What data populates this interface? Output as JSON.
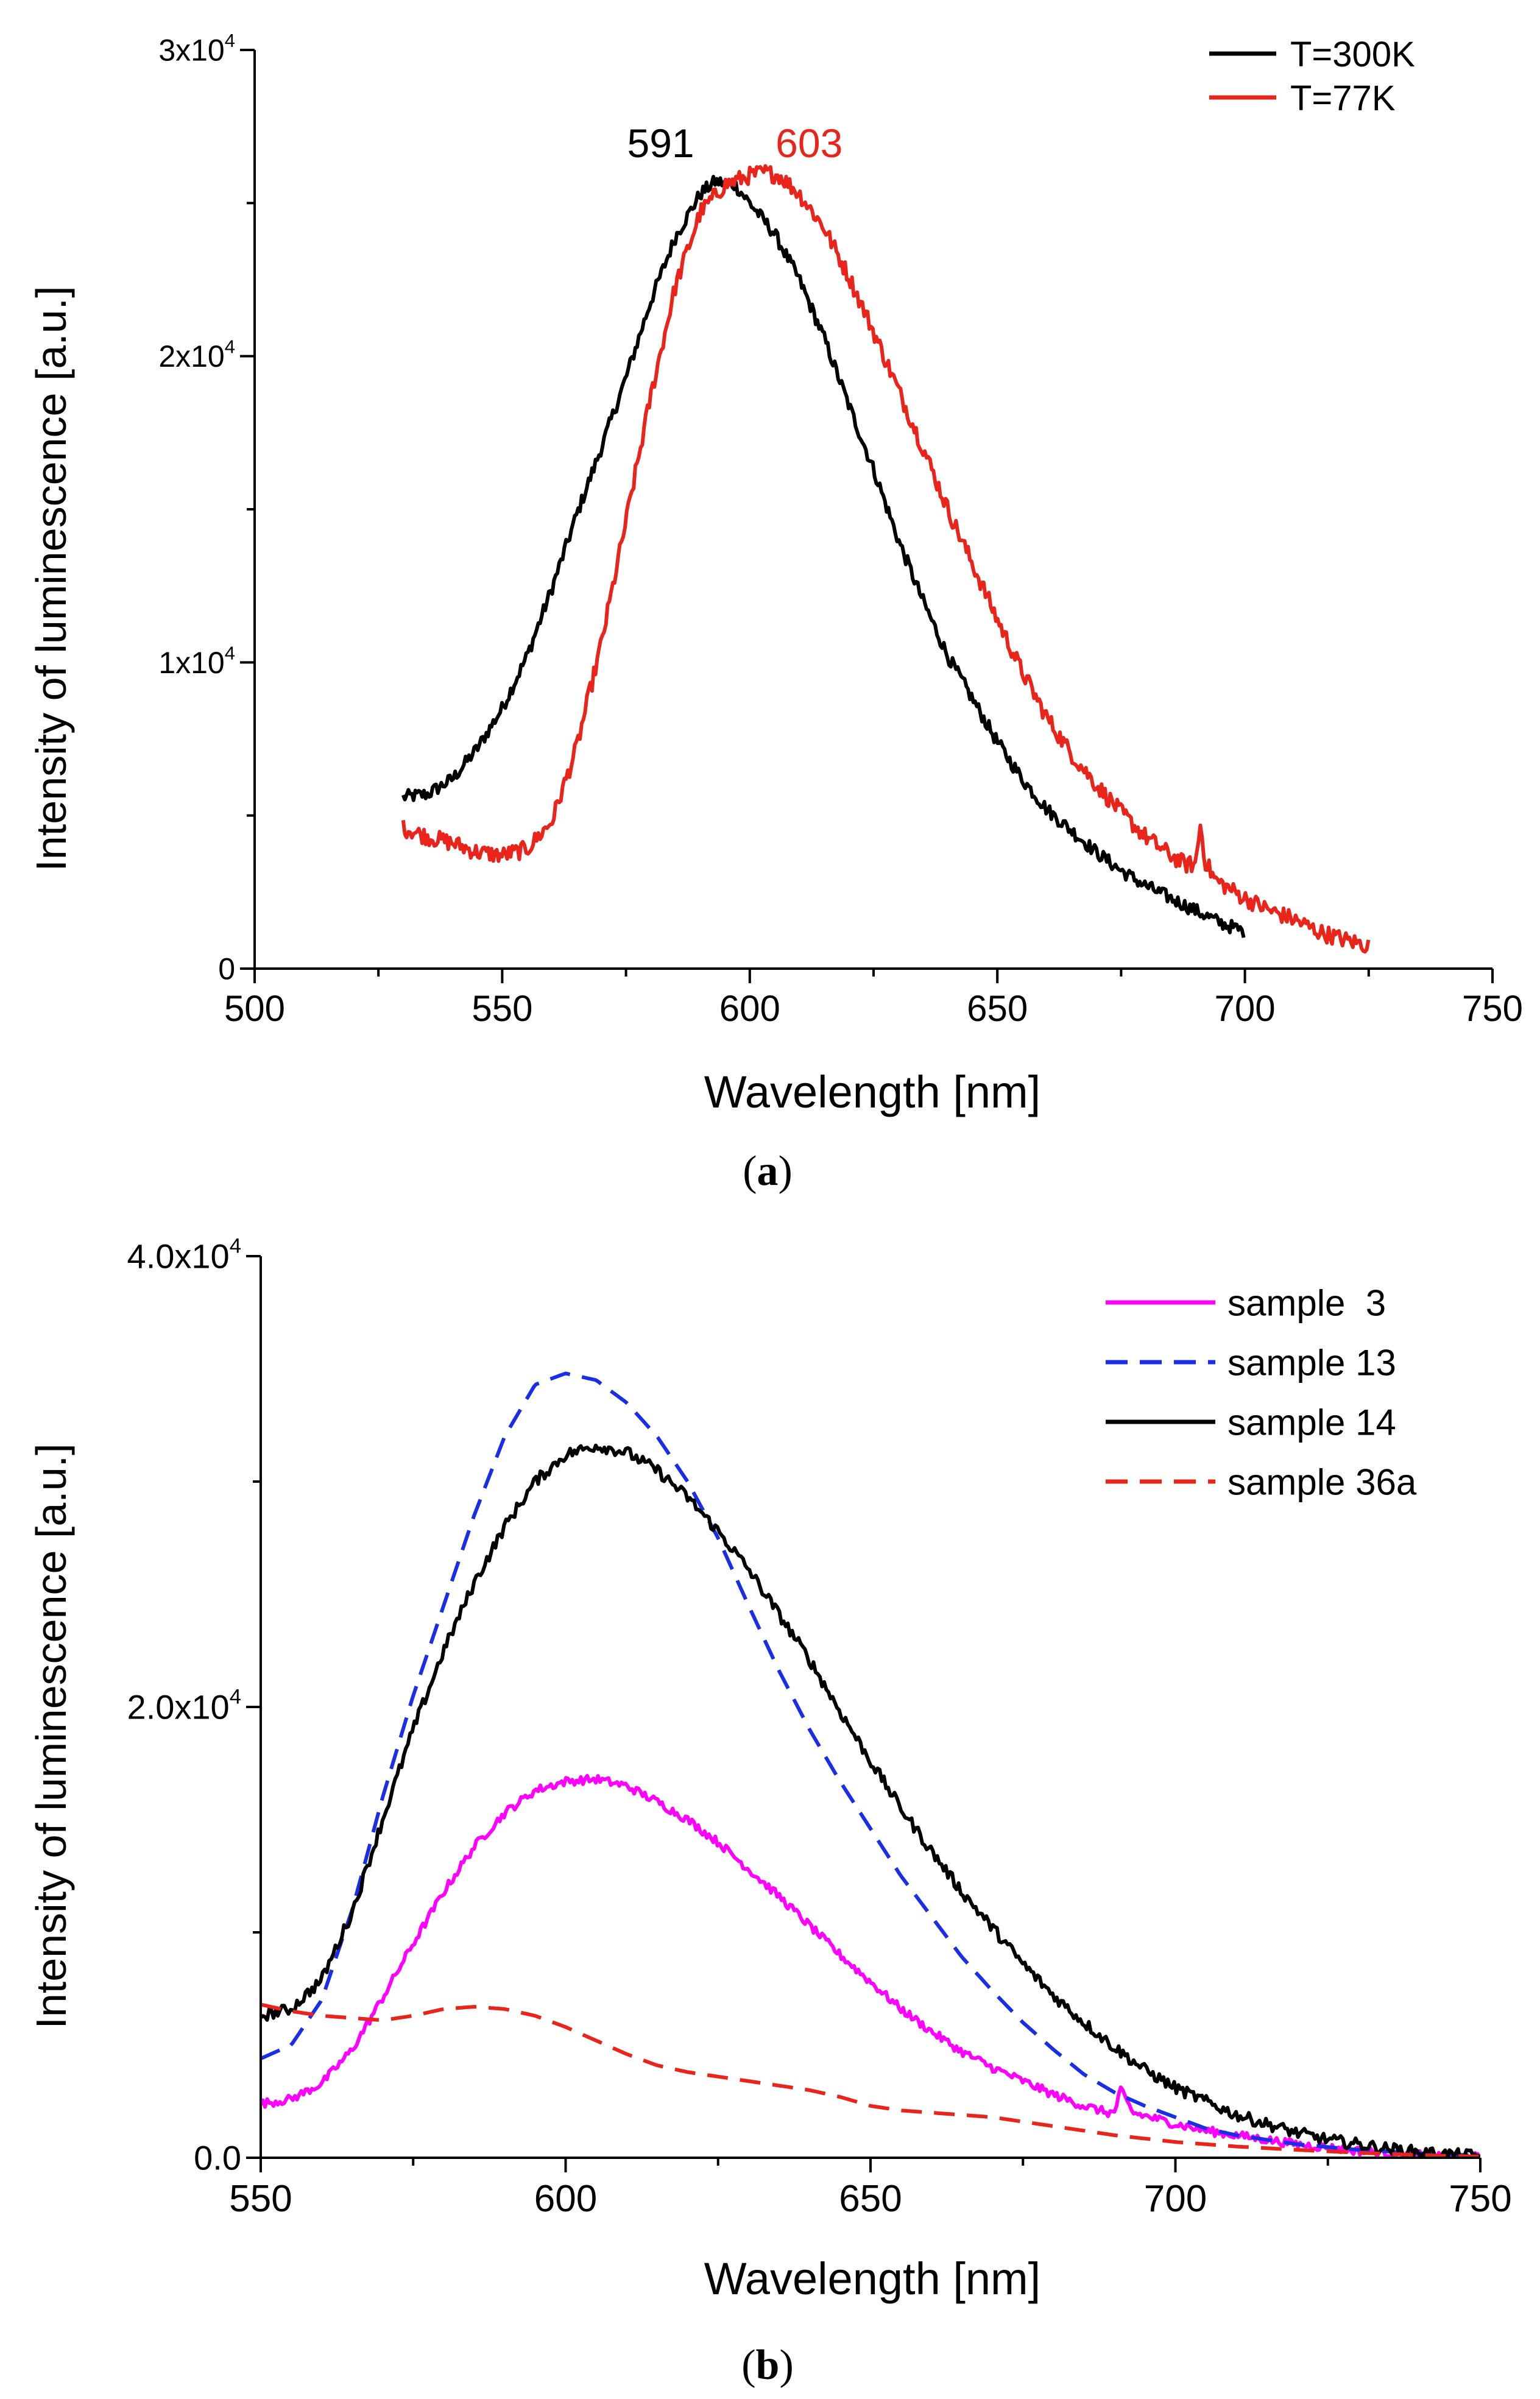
{
  "chart_data": [
    {
      "type": "line",
      "panel_label_open": "(",
      "panel_label_letter": "a",
      "panel_label_close": ")",
      "title": "",
      "xlabel": "Wavelength [nm]",
      "ylabel": "Intensity of luminescence [a.u.]",
      "xlim": [
        500,
        750
      ],
      "ylim": [
        0,
        30000
      ],
      "xticks": [
        500,
        550,
        600,
        650,
        700,
        750
      ],
      "yticks": [
        {
          "value": 0,
          "mantissa": "0",
          "exp": ""
        },
        {
          "value": 10000,
          "mantissa": "1x10",
          "exp": "4"
        },
        {
          "value": 20000,
          "mantissa": "2x10",
          "exp": "4"
        },
        {
          "value": 30000,
          "mantissa": "3x10",
          "exp": "4"
        }
      ],
      "legend_position": "top-right",
      "annotations": [
        {
          "text": "591",
          "x": 591,
          "y": 26500,
          "color": "#000000"
        },
        {
          "text": "603",
          "x": 603,
          "y": 26500,
          "color": "#e8241b"
        }
      ],
      "series": [
        {
          "name": "T=300K",
          "color": "#000000",
          "dash": "solid",
          "x": [
            530,
            535,
            540,
            545,
            550,
            555,
            560,
            565,
            570,
            575,
            580,
            585,
            590,
            593,
            597,
            600,
            605,
            610,
            615,
            620,
            625,
            630,
            635,
            640,
            645,
            650,
            655,
            660,
            665,
            670,
            675,
            680,
            685,
            690,
            695,
            700
          ],
          "y": [
            5600,
            5700,
            6200,
            7200,
            8500,
            10200,
            12400,
            14800,
            17000,
            19300,
            21800,
            23900,
            25300,
            25700,
            25600,
            25000,
            24000,
            22500,
            20600,
            18400,
            16300,
            14000,
            12000,
            10200,
            8800,
            7400,
            6200,
            5200,
            4500,
            3800,
            3200,
            2700,
            2300,
            1900,
            1500,
            1200
          ],
          "noise": 220
        },
        {
          "name": "T=77K",
          "color": "#e8241b",
          "dash": "solid",
          "x": [
            530,
            535,
            540,
            545,
            550,
            555,
            560,
            565,
            570,
            575,
            580,
            585,
            590,
            595,
            600,
            603,
            606,
            610,
            615,
            620,
            625,
            630,
            635,
            640,
            645,
            650,
            655,
            660,
            665,
            670,
            675,
            680,
            685,
            688,
            690,
            691,
            692,
            694,
            700,
            705,
            710,
            715,
            720,
            725
          ],
          "y": [
            4600,
            4300,
            4100,
            3800,
            3700,
            3900,
            4800,
            7200,
            10600,
            14600,
            18700,
            22300,
            24700,
            25600,
            25900,
            26000,
            25900,
            25300,
            24200,
            22600,
            20800,
            18900,
            17000,
            15000,
            13200,
            11400,
            9700,
            8200,
            7000,
            6000,
            5100,
            4300,
            3700,
            3400,
            3400,
            4700,
            3500,
            2900,
            2300,
            1900,
            1600,
            1200,
            950,
            750
          ],
          "noise": 280
        }
      ]
    },
    {
      "type": "line",
      "panel_label_open": "(",
      "panel_label_letter": "b",
      "panel_label_close": ")",
      "title": "",
      "xlabel": "Wavelength [nm]",
      "ylabel": "Intensity of luminescence [a.u.]",
      "xlim": [
        550,
        750
      ],
      "ylim": [
        0,
        40000
      ],
      "xticks": [
        550,
        600,
        650,
        700,
        750
      ],
      "yticks": [
        {
          "value": 0,
          "mantissa": "0.0",
          "exp": ""
        },
        {
          "value": 20000,
          "mantissa": "2.0x10",
          "exp": "4"
        },
        {
          "value": 40000,
          "mantissa": "4.0x10",
          "exp": "4"
        }
      ],
      "legend_position": "top-right",
      "series": [
        {
          "name": "sample  3",
          "color": "#ff00ff",
          "dash": "solid",
          "x": [
            550,
            555,
            560,
            565,
            570,
            575,
            580,
            585,
            590,
            595,
            600,
            605,
            610,
            615,
            620,
            625,
            630,
            635,
            640,
            645,
            650,
            655,
            660,
            665,
            670,
            675,
            680,
            685,
            689,
            690,
            691,
            693,
            700,
            705,
            710,
            715,
            720,
            725,
            730,
            735,
            740,
            745,
            750
          ],
          "y": [
            2400,
            2600,
            3300,
            4800,
            7100,
            9500,
            11800,
            13800,
            15300,
            16300,
            16700,
            16800,
            16500,
            15800,
            15000,
            14000,
            12800,
            11600,
            10300,
            9000,
            7800,
            6600,
            5600,
            4700,
            4000,
            3400,
            2800,
            2300,
            2000,
            2000,
            3000,
            2000,
            1500,
            1200,
            1000,
            800,
            600,
            450,
            300,
            200,
            120,
            60,
            30
          ],
          "noise": 190
        },
        {
          "name": "sample 13",
          "color": "#1a2ee6",
          "dash": "dashed",
          "x": [
            550,
            555,
            560,
            565,
            570,
            575,
            580,
            585,
            590,
            595,
            600,
            605,
            610,
            615,
            620,
            625,
            630,
            635,
            640,
            645,
            650,
            655,
            660,
            665,
            670,
            675,
            680,
            685,
            690,
            695,
            700,
            705,
            710,
            720,
            730,
            740,
            750
          ],
          "y": [
            4400,
            5000,
            7000,
            11000,
            16000,
            20500,
            24500,
            28500,
            32000,
            34300,
            34800,
            34500,
            33500,
            32000,
            30000,
            27500,
            24500,
            21600,
            19000,
            16700,
            14600,
            12500,
            10700,
            8900,
            7400,
            6000,
            4800,
            3700,
            2900,
            2300,
            1800,
            1300,
            1000,
            600,
            350,
            200,
            100
          ],
          "noise": 0
        },
        {
          "name": "sample 14",
          "color": "#000000",
          "dash": "solid",
          "x": [
            550,
            555,
            560,
            565,
            570,
            575,
            580,
            585,
            590,
            595,
            600,
            605,
            610,
            615,
            620,
            625,
            630,
            635,
            640,
            645,
            650,
            655,
            660,
            665,
            670,
            675,
            680,
            685,
            690,
            695,
            700,
            705,
            710,
            715,
            720,
            725,
            730,
            735,
            740,
            745,
            750
          ],
          "y": [
            6300,
            6600,
            7900,
            10900,
            15000,
            19000,
            22500,
            25500,
            28000,
            30000,
            31200,
            31600,
            31300,
            30500,
            29300,
            27800,
            26100,
            24100,
            22100,
            19800,
            17600,
            15500,
            13600,
            11800,
            10200,
            8600,
            7200,
            6000,
            4900,
            3900,
            3100,
            2500,
            1900,
            1500,
            1100,
            800,
            600,
            400,
            250,
            150,
            80
          ],
          "noise": 260
        },
        {
          "name": "sample 36a",
          "color": "#e8241b",
          "dash": "dashed",
          "x": [
            550,
            555,
            560,
            565,
            570,
            575,
            580,
            585,
            590,
            595,
            600,
            605,
            610,
            615,
            620,
            625,
            630,
            635,
            640,
            645,
            650,
            655,
            660,
            665,
            670,
            675,
            680,
            685,
            690,
            695,
            700,
            710,
            720,
            730,
            740,
            750
          ],
          "y": [
            6800,
            6500,
            6300,
            6200,
            6100,
            6300,
            6600,
            6700,
            6600,
            6300,
            5800,
            5200,
            4600,
            4100,
            3800,
            3600,
            3400,
            3200,
            3000,
            2700,
            2300,
            2100,
            2000,
            1900,
            1800,
            1600,
            1400,
            1200,
            1000,
            850,
            700,
            500,
            350,
            220,
            120,
            50
          ],
          "noise": 0
        }
      ]
    }
  ]
}
